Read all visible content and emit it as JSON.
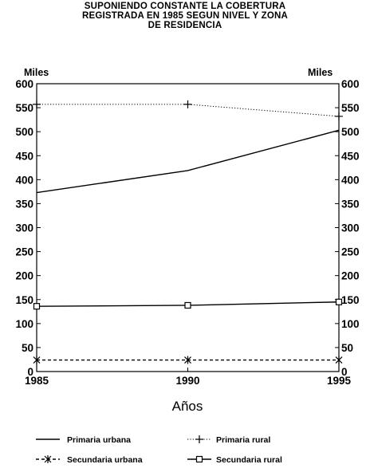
{
  "title_lines": [
    "SUPONIENDO CONSTANTE LA COBERTURA",
    "REGISTRADA EN 1985 SEGUN NIVEL Y ZONA",
    "DE RESIDENCIA"
  ],
  "chart_data": {
    "type": "line",
    "xlabel": "Años",
    "ylabel_left": "Miles",
    "ylabel_right": "Miles",
    "ylim": [
      0,
      600
    ],
    "xlim": [
      1985,
      1995
    ],
    "yticks": [
      "0",
      "50",
      "100",
      "150",
      "200",
      "250",
      "300",
      "350",
      "400",
      "450",
      "500",
      "550",
      "600"
    ],
    "xticks": [
      "1985",
      "1990",
      "1995"
    ],
    "x": [
      1985,
      1990,
      1995
    ],
    "series": [
      {
        "name": "Primaria urbana",
        "values": [
          373,
          419,
          503
        ],
        "line": "solid",
        "marker": "none"
      },
      {
        "name": "Primaria rural",
        "values": [
          557,
          557,
          532
        ],
        "line": "dotted",
        "marker": "plus"
      },
      {
        "name": "Secundaria urbana",
        "values": [
          24,
          24,
          24
        ],
        "line": "dashed",
        "marker": "star"
      },
      {
        "name": "Secundaria rural",
        "values": [
          136,
          138,
          145
        ],
        "line": "solid",
        "marker": "square"
      }
    ],
    "grid": false,
    "legend_position": "bottom"
  },
  "colors": {
    "ink": "#000000",
    "background": "#ffffff"
  }
}
